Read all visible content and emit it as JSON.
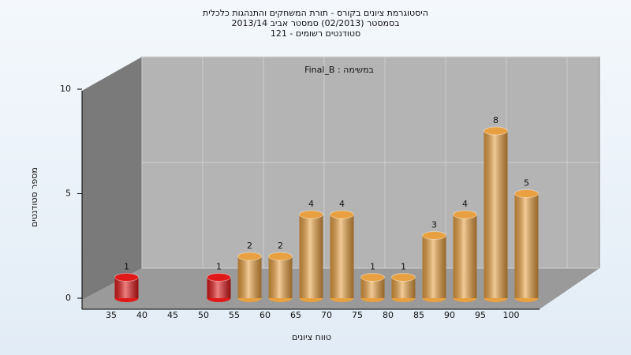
{
  "chart_data": {
    "type": "bar",
    "title": [
      "היסטוגרמת ציונים בקורס - תורת המשחקים והתנהגות כלכלית",
      "בסמסטר (02/2013)  סמסטר אביב 2013/14",
      "סטודנטים רשומים - 121"
    ],
    "annotation": "Final_B : במשימה",
    "x_label": "טווח ציונים",
    "y_label": "מספר סטודנטים",
    "categories": [
      "35",
      "40",
      "45",
      "50",
      "55",
      "60",
      "65",
      "70",
      "75",
      "80",
      "85",
      "90",
      "95",
      "100"
    ],
    "values": [
      1,
      0,
      0,
      1,
      2,
      2,
      4,
      4,
      1,
      1,
      3,
      4,
      8,
      5
    ],
    "colors": [
      "#e01818",
      "#e8a040",
      "#e8a040",
      "#e01818",
      "#e8a040",
      "#e8a040",
      "#e8a040",
      "#e8a040",
      "#e8a040",
      "#e8a040",
      "#e8a040",
      "#e8a040",
      "#e8a040",
      "#e8a040"
    ],
    "ylim": [
      0,
      10
    ],
    "yticks": [
      0,
      5,
      10
    ],
    "grid": true
  }
}
